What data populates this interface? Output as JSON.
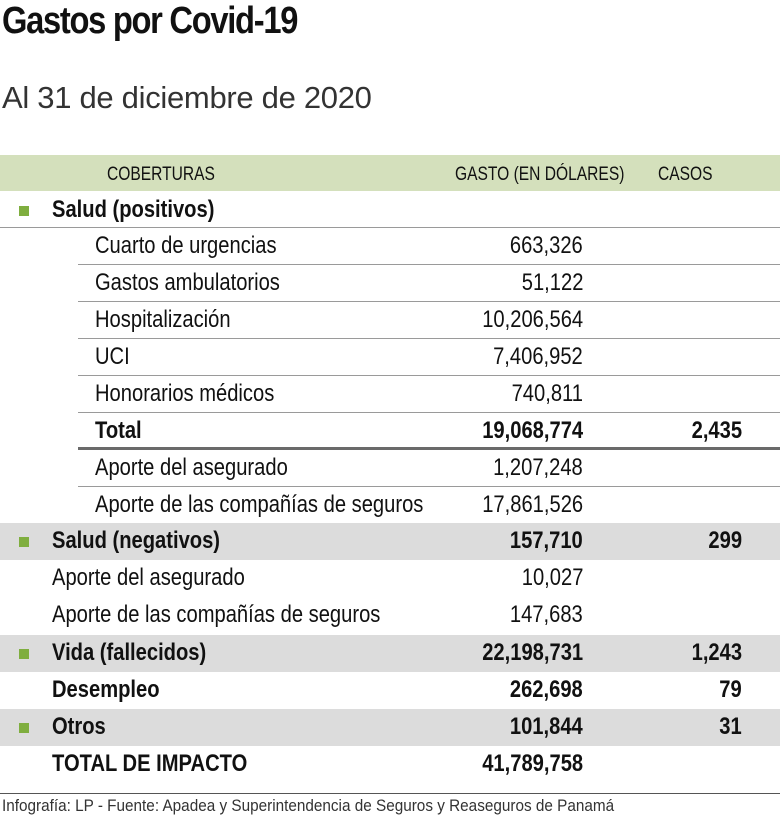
{
  "title": "Gastos por Covid-19",
  "subtitle": "Al 31 de diciembre de 2020",
  "colors": {
    "header_bg": "#d4e0bc",
    "bullet": "#7fae3f",
    "band": "#dcdcdc"
  },
  "columns": {
    "coberturas": "COBERTURAS",
    "gasto": "GASTO (EN DÓLARES)",
    "casos": "CASOS"
  },
  "rows": [
    {
      "label": "Salud (positivos)",
      "gasto": "",
      "casos": "",
      "level": "section",
      "bullet": true,
      "gray": false
    },
    {
      "label": "Cuarto de urgencias",
      "gasto": "663,326",
      "casos": "",
      "level": "sub"
    },
    {
      "label": "Gastos ambulatorios",
      "gasto": "51,122",
      "casos": "",
      "level": "sub"
    },
    {
      "label": "Hospitalización",
      "gasto": "10,206,564",
      "casos": "",
      "level": "sub"
    },
    {
      "label": "UCI",
      "gasto": "7,406,952",
      "casos": "",
      "level": "sub"
    },
    {
      "label": "Honorarios médicos",
      "gasto": "740,811",
      "casos": "",
      "level": "sub"
    },
    {
      "label": "Total",
      "gasto": "19,068,774",
      "casos": "2,435",
      "level": "subtotal"
    },
    {
      "label": "Aporte del asegurado",
      "gasto": "1,207,248",
      "casos": "",
      "level": "sub"
    },
    {
      "label": "Aporte de las compañías de seguros",
      "gasto": "17,861,526",
      "casos": "",
      "level": "sub-last"
    },
    {
      "label": "Salud (negativos)",
      "gasto": "157,710",
      "casos": "299",
      "level": "section",
      "bullet": true,
      "gray": true
    },
    {
      "label": "Aporte del asegurado",
      "gasto": "10,027",
      "casos": "",
      "level": "detail"
    },
    {
      "label": "Aporte de las compañías de seguros",
      "gasto": "147,683",
      "casos": "",
      "level": "detail"
    },
    {
      "label": "Vida (fallecidos)",
      "gasto": "22,198,731",
      "casos": "1,243",
      "level": "section",
      "bullet": true,
      "gray": true
    },
    {
      "label": "Desempleo",
      "gasto": "262,698",
      "casos": "79",
      "level": "section",
      "bullet": false,
      "gray": false
    },
    {
      "label": "Otros",
      "gasto": "101,844",
      "casos": "31",
      "level": "section",
      "bullet": true,
      "gray": true
    },
    {
      "label": "TOTAL DE IMPACTO",
      "gasto": "41,789,758",
      "casos": "",
      "level": "section",
      "bullet": false,
      "gray": false
    }
  ],
  "footer": "Infografía: LP - Fuente: Apadea y Superintendencia de Seguros y Reaseguros de Panamá"
}
